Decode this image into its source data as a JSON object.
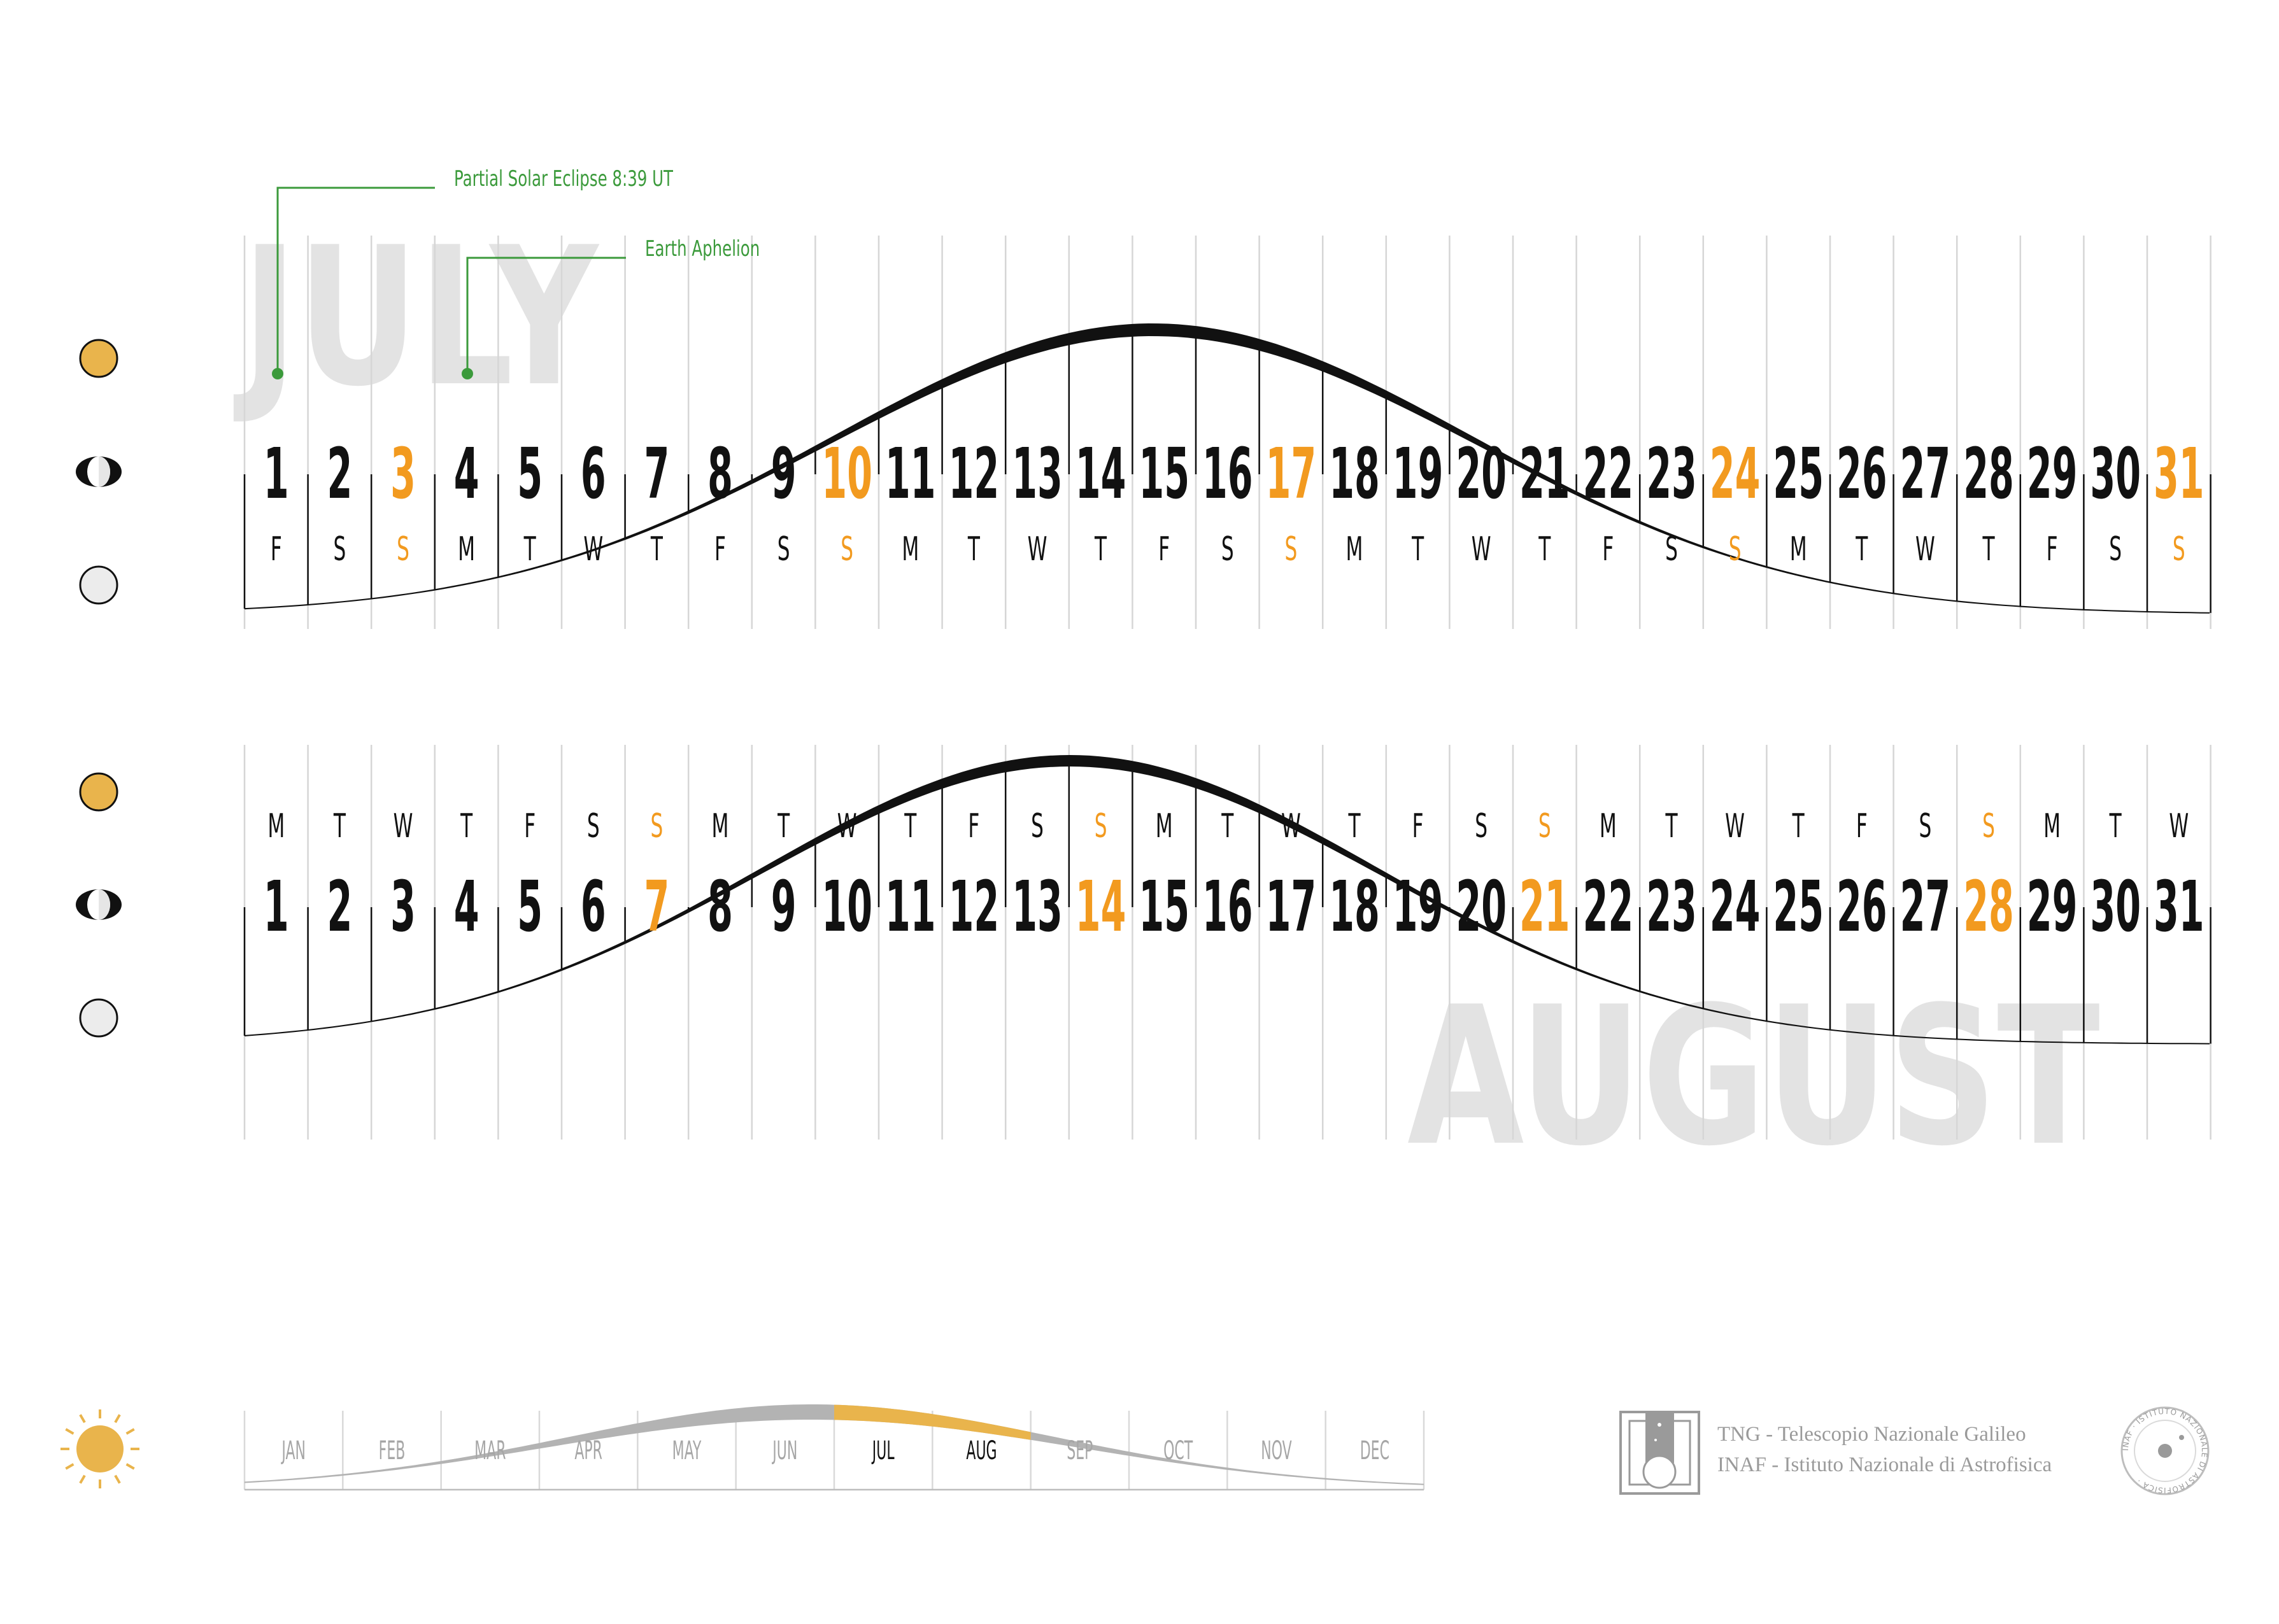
{
  "annotations": {
    "eclipse": "Partial Solar Eclipse 8:39 UT",
    "aphelion": "Earth Aphelion",
    "color": "#3b9a3b"
  },
  "colors": {
    "weekend": "#f29a1f",
    "text": "#111111",
    "grid": "#d6d6d6",
    "month_watermark": "#e3e3e3",
    "sun": "#e9b44c",
    "highlight": "#e9b44c",
    "timeline_curve": "#b3b3b3"
  },
  "july": {
    "name": "JULY",
    "days": [
      {
        "num": "1",
        "dow": "F",
        "sunday": false
      },
      {
        "num": "2",
        "dow": "S",
        "sunday": false
      },
      {
        "num": "3",
        "dow": "S",
        "sunday": true
      },
      {
        "num": "4",
        "dow": "M",
        "sunday": false
      },
      {
        "num": "5",
        "dow": "T",
        "sunday": false
      },
      {
        "num": "6",
        "dow": "W",
        "sunday": false
      },
      {
        "num": "7",
        "dow": "T",
        "sunday": false
      },
      {
        "num": "8",
        "dow": "F",
        "sunday": false
      },
      {
        "num": "9",
        "dow": "S",
        "sunday": false
      },
      {
        "num": "10",
        "dow": "S",
        "sunday": true
      },
      {
        "num": "11",
        "dow": "M",
        "sunday": false
      },
      {
        "num": "12",
        "dow": "T",
        "sunday": false
      },
      {
        "num": "13",
        "dow": "W",
        "sunday": false
      },
      {
        "num": "14",
        "dow": "T",
        "sunday": false
      },
      {
        "num": "15",
        "dow": "F",
        "sunday": false
      },
      {
        "num": "16",
        "dow": "S",
        "sunday": false
      },
      {
        "num": "17",
        "dow": "S",
        "sunday": true
      },
      {
        "num": "18",
        "dow": "M",
        "sunday": false
      },
      {
        "num": "19",
        "dow": "T",
        "sunday": false
      },
      {
        "num": "20",
        "dow": "W",
        "sunday": false
      },
      {
        "num": "21",
        "dow": "T",
        "sunday": false
      },
      {
        "num": "22",
        "dow": "F",
        "sunday": false
      },
      {
        "num": "23",
        "dow": "S",
        "sunday": false
      },
      {
        "num": "24",
        "dow": "S",
        "sunday": true
      },
      {
        "num": "25",
        "dow": "M",
        "sunday": false
      },
      {
        "num": "26",
        "dow": "T",
        "sunday": false
      },
      {
        "num": "27",
        "dow": "W",
        "sunday": false
      },
      {
        "num": "28",
        "dow": "T",
        "sunday": false
      },
      {
        "num": "29",
        "dow": "F",
        "sunday": false
      },
      {
        "num": "30",
        "dow": "S",
        "sunday": false
      },
      {
        "num": "31",
        "dow": "S",
        "sunday": true
      }
    ]
  },
  "august": {
    "name": "AUGUST",
    "days": [
      {
        "num": "1",
        "dow": "M",
        "sunday": false
      },
      {
        "num": "2",
        "dow": "T",
        "sunday": false
      },
      {
        "num": "3",
        "dow": "W",
        "sunday": false
      },
      {
        "num": "4",
        "dow": "T",
        "sunday": false
      },
      {
        "num": "5",
        "dow": "F",
        "sunday": false
      },
      {
        "num": "6",
        "dow": "S",
        "sunday": false
      },
      {
        "num": "7",
        "dow": "S",
        "sunday": true
      },
      {
        "num": "8",
        "dow": "M",
        "sunday": false
      },
      {
        "num": "9",
        "dow": "T",
        "sunday": false
      },
      {
        "num": "10",
        "dow": "W",
        "sunday": false
      },
      {
        "num": "11",
        "dow": "T",
        "sunday": false
      },
      {
        "num": "12",
        "dow": "F",
        "sunday": false
      },
      {
        "num": "13",
        "dow": "S",
        "sunday": false
      },
      {
        "num": "14",
        "dow": "S",
        "sunday": true
      },
      {
        "num": "15",
        "dow": "M",
        "sunday": false
      },
      {
        "num": "16",
        "dow": "T",
        "sunday": false
      },
      {
        "num": "17",
        "dow": "W",
        "sunday": false
      },
      {
        "num": "18",
        "dow": "T",
        "sunday": false
      },
      {
        "num": "19",
        "dow": "F",
        "sunday": false
      },
      {
        "num": "20",
        "dow": "S",
        "sunday": false
      },
      {
        "num": "21",
        "dow": "S",
        "sunday": true
      },
      {
        "num": "22",
        "dow": "M",
        "sunday": false
      },
      {
        "num": "23",
        "dow": "T",
        "sunday": false
      },
      {
        "num": "24",
        "dow": "W",
        "sunday": false
      },
      {
        "num": "25",
        "dow": "T",
        "sunday": false
      },
      {
        "num": "26",
        "dow": "F",
        "sunday": false
      },
      {
        "num": "27",
        "dow": "S",
        "sunday": false
      },
      {
        "num": "28",
        "dow": "S",
        "sunday": true
      },
      {
        "num": "29",
        "dow": "M",
        "sunday": false
      },
      {
        "num": "30",
        "dow": "T",
        "sunday": false
      },
      {
        "num": "31",
        "dow": "W",
        "sunday": false
      }
    ]
  },
  "moon_icons": [
    "full-moon-icon",
    "half-moon-icon",
    "new-moon-icon"
  ],
  "timeline": {
    "months": [
      "JAN",
      "FEB",
      "MAR",
      "APR",
      "MAY",
      "JUN",
      "JUL",
      "AUG",
      "SEP",
      "OCT",
      "NOV",
      "DEC"
    ],
    "highlighted": [
      "JUL",
      "AUG"
    ]
  },
  "footer": {
    "line1": "TNG - Telescopio Nazionale Galileo",
    "line2": "INAF - Istituto Nazionale di Astrofisica",
    "seal_text": "INAF · ISTITUTO NAZIONALE DI ASTROFISICA ·"
  }
}
